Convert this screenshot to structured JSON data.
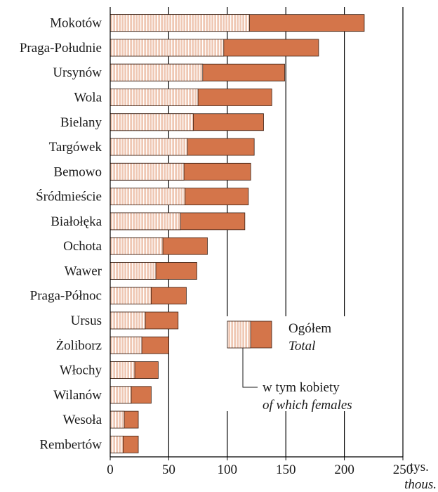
{
  "chart_data": {
    "type": "bar",
    "orientation": "horizontal",
    "categories": [
      "Mokotów",
      "Praga-Południe",
      "Ursynów",
      "Wola",
      "Bielany",
      "Targówek",
      "Bemowo",
      "Śródmieście",
      "Białołęka",
      "Ochota",
      "Wawer",
      "Praga-Północ",
      "Ursus",
      "Żoliborz",
      "Włochy",
      "Wilanów",
      "Wesoła",
      "Rembertów"
    ],
    "series": [
      {
        "name": "Ogółem Total",
        "values": [
          217,
          178,
          149,
          138,
          131,
          123,
          120,
          118,
          115,
          83,
          74,
          65,
          58,
          50,
          41,
          35,
          24,
          24
        ]
      },
      {
        "name": "w tym kobiety of which females",
        "values": [
          119,
          97,
          79,
          75,
          71,
          66,
          63,
          64,
          60,
          45,
          39,
          35,
          30,
          27,
          21,
          18,
          12,
          11
        ]
      }
    ],
    "xlim": [
      0,
      250
    ],
    "xticks": [
      "0",
      "50",
      "100",
      "150",
      "200",
      "250"
    ],
    "xunit": "tys.",
    "xunit_en": "thous.",
    "grid": "vertical",
    "legend": {
      "placement": "inside-right",
      "total_label": "Ogółem",
      "total_label_en": "Total",
      "female_label": "w tym kobiety",
      "female_label_en": "of which females"
    },
    "colors": {
      "total": "#d4754a",
      "female_base": "#efc8b4",
      "female_stripe": "#ffffff",
      "border": "#3a1f12",
      "grid": "#000000"
    }
  }
}
